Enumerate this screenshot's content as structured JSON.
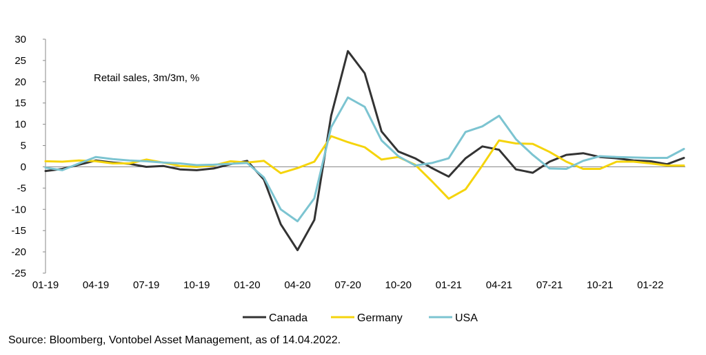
{
  "chart_data": {
    "type": "line",
    "title": "",
    "annotation": "Retail sales, 3m/3m, %",
    "xlabel": "",
    "ylabel": "",
    "ylim": [
      -25,
      30
    ],
    "yticks": [
      30,
      25,
      20,
      15,
      10,
      5,
      0,
      -5,
      -10,
      -15,
      -20,
      -25
    ],
    "x": [
      "01-19",
      "02-19",
      "03-19",
      "04-19",
      "05-19",
      "06-19",
      "07-19",
      "08-19",
      "09-19",
      "10-19",
      "11-19",
      "12-19",
      "01-20",
      "02-20",
      "03-20",
      "04-20",
      "05-20",
      "06-20",
      "07-20",
      "08-20",
      "09-20",
      "10-20",
      "11-20",
      "12-20",
      "01-21",
      "02-21",
      "03-21",
      "04-21",
      "05-21",
      "06-21",
      "07-21",
      "08-21",
      "09-21",
      "10-21",
      "11-21",
      "12-21",
      "01-22",
      "02-22",
      "03-22"
    ],
    "xtick_labels": [
      "01-19",
      "04-19",
      "07-19",
      "10-19",
      "01-20",
      "04-20",
      "07-20",
      "10-20",
      "01-21",
      "04-21",
      "07-21",
      "10-21",
      "01-22"
    ],
    "grid": false,
    "legend_position": "bottom",
    "series": [
      {
        "name": "Canada",
        "color": "#333333",
        "values": [
          -1.0,
          -0.5,
          0.5,
          1.5,
          1.0,
          0.7,
          0.0,
          0.2,
          -0.6,
          -0.8,
          -0.4,
          0.6,
          1.4,
          -3.0,
          -13.5,
          -19.6,
          -12.5,
          12.0,
          27.2,
          22.0,
          8.3,
          3.6,
          2.0,
          -0.3,
          -2.3,
          2.0,
          4.8,
          4.0,
          -0.6,
          -1.4,
          1.2,
          2.8,
          3.2,
          2.3,
          2.0,
          1.5,
          1.3,
          0.6,
          2.1
        ]
      },
      {
        "name": "Germany",
        "color": "#F5D40C",
        "values": [
          1.3,
          1.2,
          1.5,
          1.3,
          0.8,
          0.8,
          1.7,
          1.0,
          0.2,
          0.0,
          0.3,
          1.3,
          1.0,
          1.4,
          -1.5,
          -0.3,
          1.2,
          7.2,
          5.8,
          4.6,
          1.7,
          2.3,
          0.5,
          -3.4,
          -7.5,
          -5.3,
          0.3,
          6.2,
          5.5,
          5.4,
          3.5,
          1.2,
          -0.5,
          -0.5,
          1.2,
          1.2,
          0.8,
          0.3,
          0.3
        ]
      },
      {
        "name": "USA",
        "color": "#7CC4D1",
        "values": [
          -0.2,
          -0.8,
          0.8,
          2.3,
          1.8,
          1.5,
          1.3,
          1.0,
          0.8,
          0.4,
          0.5,
          0.7,
          0.9,
          -2.5,
          -10.0,
          -12.8,
          -7.4,
          9.3,
          16.3,
          14.1,
          6.2,
          2.5,
          0.3,
          0.9,
          2.0,
          8.2,
          9.5,
          12.0,
          6.5,
          2.8,
          -0.4,
          -0.5,
          1.4,
          2.5,
          2.3,
          2.2,
          2.1,
          2.1,
          4.2
        ]
      }
    ]
  },
  "source": "Source: Bloomberg, Vontobel Asset Management, as of 14.04.2022."
}
